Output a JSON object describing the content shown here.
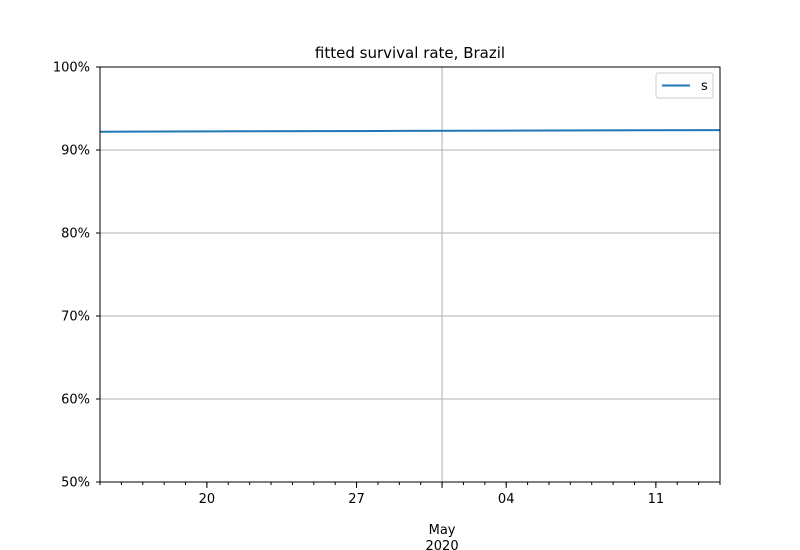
{
  "chart_data": {
    "type": "line",
    "title": "fitted survival rate, Brazil",
    "xlabel": "",
    "ylabel": "",
    "xlim": [
      "2020-04-15",
      "2020-05-14"
    ],
    "ylim": [
      50,
      100
    ],
    "y_unit": "%",
    "grid": true,
    "legend_placement": "top-right",
    "y_ticks": [
      {
        "value": 50,
        "label": "50%"
      },
      {
        "value": 60,
        "label": "60%"
      },
      {
        "value": 70,
        "label": "70%"
      },
      {
        "value": 80,
        "label": "80%"
      },
      {
        "value": 90,
        "label": "90%"
      },
      {
        "value": 100,
        "label": "100%"
      }
    ],
    "x_major_ticks": [
      {
        "date": "2020-04-20",
        "label": "20"
      },
      {
        "date": "2020-04-27",
        "label": "27"
      },
      {
        "date": "2020-05-04",
        "label": "04"
      },
      {
        "date": "2020-05-11",
        "label": "11"
      }
    ],
    "x_month_tick": {
      "date": "2020-05-01",
      "label": "May",
      "sublabel": "2020"
    },
    "series": [
      {
        "name": "s",
        "color": "#1f77b4",
        "x": [
          "2020-04-15",
          "2020-04-22",
          "2020-04-29",
          "2020-05-06",
          "2020-05-14"
        ],
        "y": [
          92.2,
          92.25,
          92.3,
          92.35,
          92.4
        ]
      }
    ]
  }
}
